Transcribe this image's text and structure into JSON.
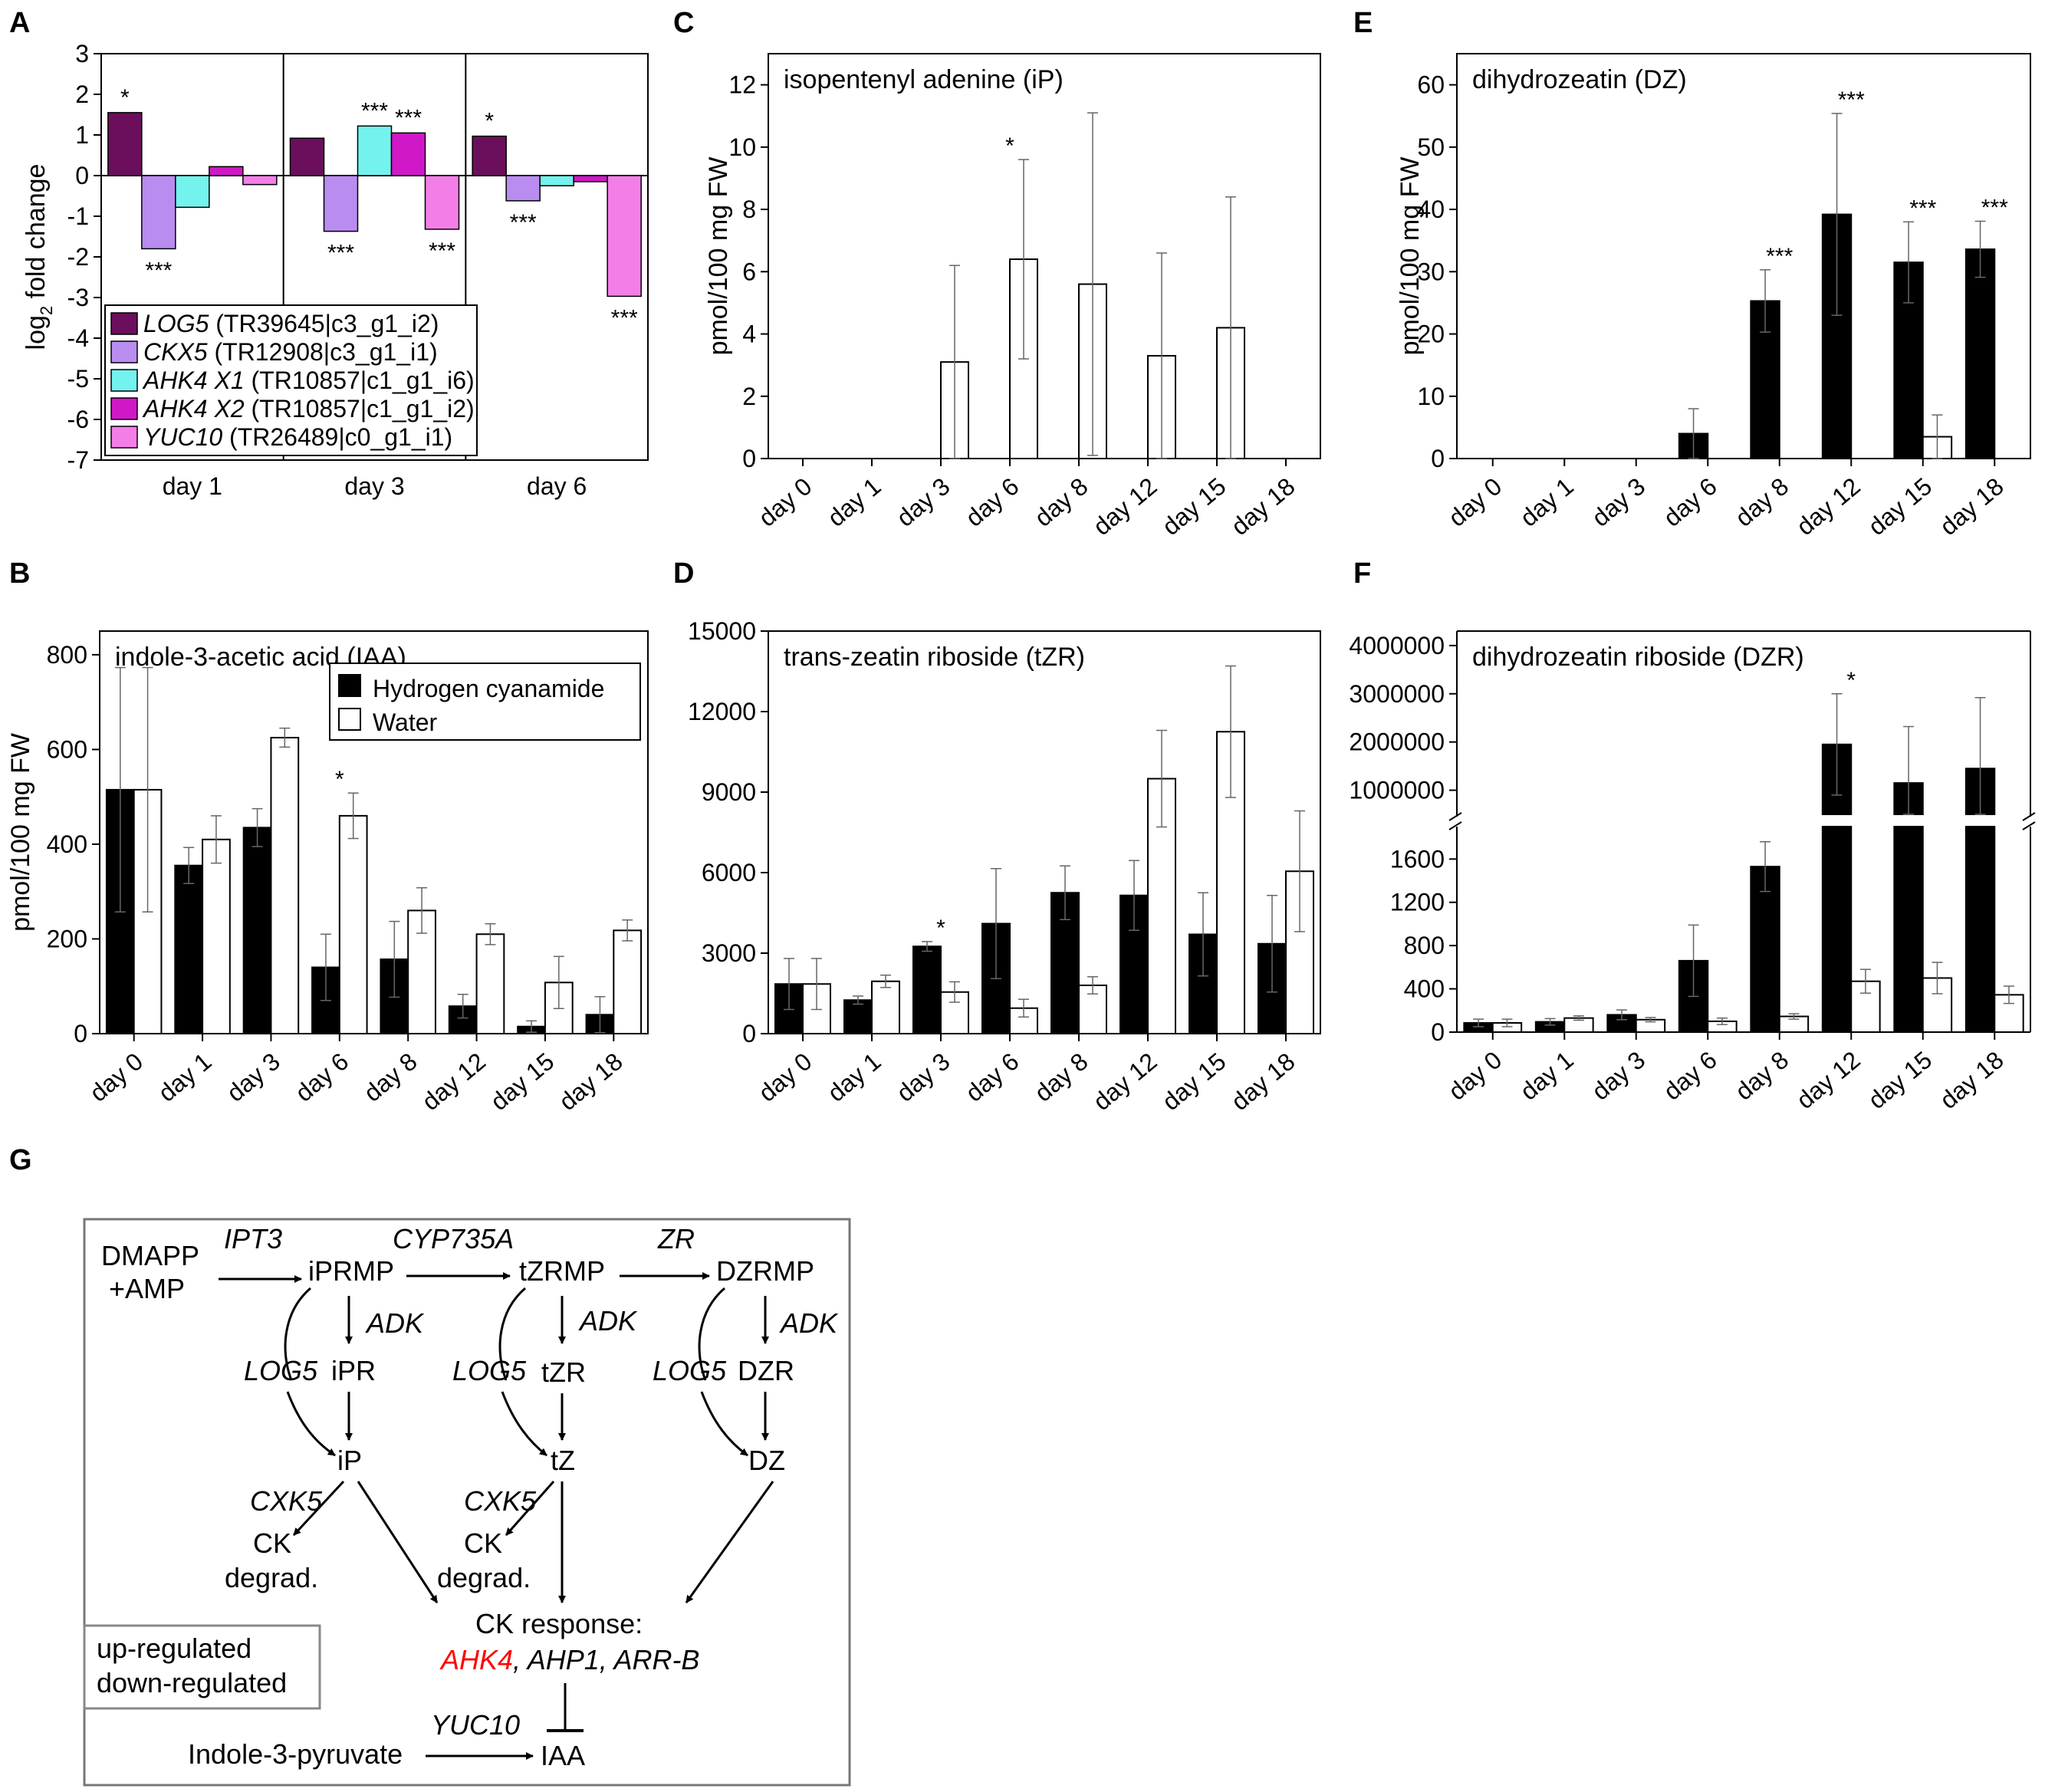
{
  "colors": {
    "hc": "#000000",
    "water": "#ffffff",
    "up": "#ff0000",
    "down": "#2020c0",
    "LOG5": "#6b0f5c",
    "CKX5": "#b98cf0",
    "AHK4_X1": "#73f2ee",
    "AHK4_X2": "#d018c8",
    "YUC10": "#f47ee8"
  },
  "legend_bc": {
    "hc": "Hydrogen cyanamide",
    "water": "Water"
  },
  "chart_data": [
    {
      "panel": "A",
      "type": "bar",
      "ylabel_main": "log",
      "ylabel_sub": "2",
      "ylabel_rest": " fold change",
      "ylim": [
        -7,
        3
      ],
      "yticks": [
        "3",
        "2",
        "1",
        "0",
        "-1",
        "-2",
        "-3",
        "-4",
        "-5",
        "-6",
        "-7"
      ],
      "groups": [
        "day 1",
        "day 3",
        "day 6"
      ],
      "series": [
        {
          "gene": "LOG5",
          "id": " (TR39645|c3_g1_i2)",
          "color_key": "LOG5",
          "values": [
            1.55,
            0.92,
            0.97
          ],
          "stars": [
            "*",
            "",
            "*"
          ]
        },
        {
          "gene": "CKX5",
          "id": " (TR12908|c3_g1_i1)",
          "color_key": "CKX5",
          "values": [
            -1.8,
            -1.37,
            -0.62
          ],
          "stars": [
            "***",
            "***",
            "***"
          ]
        },
        {
          "gene": "AHK4 X1",
          "id": " (TR10857|c1_g1_i6)",
          "color_key": "AHK4_X1",
          "values": [
            -0.78,
            1.22,
            -0.25
          ],
          "stars": [
            "",
            "***",
            ""
          ]
        },
        {
          "gene": "AHK4 X2",
          "id": " (TR10857|c1_g1_i2)",
          "color_key": "AHK4_X2",
          "values": [
            0.22,
            1.05,
            -0.15
          ],
          "stars": [
            "",
            "***",
            ""
          ]
        },
        {
          "gene": "YUC10",
          "id": " (TR26489|c0_g1_i1)",
          "color_key": "YUC10",
          "values": [
            -0.22,
            -1.32,
            -2.97
          ],
          "stars": [
            "",
            "***",
            "***"
          ]
        }
      ]
    },
    {
      "panel": "B",
      "type": "bar",
      "title": "indole-3-acetic acid (IAA)",
      "ylabel": "pmol/100 mg FW",
      "ylim": [
        0,
        850
      ],
      "yticks": [
        0,
        200,
        400,
        600,
        800
      ],
      "categories": [
        "day 0",
        "day 1",
        "day 3",
        "day 6",
        "day 8",
        "day 12",
        "day 15",
        "day 18"
      ],
      "series": [
        {
          "name": "Hydrogen cyanamide",
          "values": [
            515,
            355,
            435,
            140,
            157,
            58,
            15,
            40
          ],
          "errors": [
            258,
            38,
            40,
            70,
            80,
            25,
            12,
            38
          ]
        },
        {
          "name": "Water",
          "values": [
            515,
            410,
            625,
            460,
            260,
            210,
            108,
            218
          ],
          "errors": [
            258,
            50,
            20,
            48,
            48,
            22,
            55,
            22
          ]
        }
      ],
      "stars": [
        "",
        "",
        "",
        "*",
        "",
        "",
        "",
        ""
      ]
    },
    {
      "panel": "C",
      "type": "bar",
      "title": "isopentenyl adenine (iP)",
      "ylabel": "pmol/100 mg FW",
      "ylim": [
        0,
        13
      ],
      "yticks": [
        0,
        2,
        4,
        6,
        8,
        10,
        12
      ],
      "categories": [
        "day 0",
        "day 1",
        "day 3",
        "day 6",
        "day 8",
        "day 12",
        "day 15",
        "day 18"
      ],
      "series": [
        {
          "name": "Hydrogen cyanamide",
          "values": [
            0,
            0,
            0,
            0,
            0,
            0,
            0,
            0
          ],
          "errors": [
            0,
            0,
            0,
            0,
            0,
            0,
            0,
            0
          ]
        },
        {
          "name": "Water",
          "values": [
            0,
            0,
            3.1,
            6.4,
            5.6,
            3.3,
            4.2,
            0
          ],
          "errors": [
            0,
            0,
            3.1,
            3.2,
            5.5,
            3.3,
            4.2,
            0
          ]
        }
      ],
      "stars": [
        "",
        "",
        "",
        "*",
        "",
        "",
        "",
        ""
      ]
    },
    {
      "panel": "D",
      "type": "bar",
      "title": "trans-zeatin riboside (tZR)",
      "ylim": [
        0,
        15000
      ],
      "yticks": [
        0,
        3000,
        6000,
        9000,
        12000,
        15000
      ],
      "categories": [
        "day 0",
        "day 1",
        "day 3",
        "day 6",
        "day 8",
        "day 12",
        "day 15",
        "day 18"
      ],
      "series": [
        {
          "name": "Hydrogen cyanamide",
          "values": [
            1850,
            1250,
            3250,
            4100,
            5250,
            5150,
            3700,
            3350
          ],
          "errors": [
            950,
            150,
            180,
            2050,
            1000,
            1300,
            1550,
            1800
          ]
        },
        {
          "name": "Water",
          "values": [
            1850,
            1950,
            1550,
            950,
            1800,
            9500,
            11250,
            6050
          ],
          "errors": [
            950,
            230,
            380,
            330,
            320,
            1800,
            2450,
            2250
          ]
        }
      ],
      "stars": [
        "",
        "",
        "*",
        "",
        "",
        "",
        "",
        ""
      ]
    },
    {
      "panel": "E",
      "type": "bar",
      "title": "dihydrozeatin (DZ)",
      "ylabel": "pmol/100 mg FW",
      "ylim": [
        0,
        65
      ],
      "yticks": [
        0,
        10,
        20,
        30,
        40,
        50,
        60
      ],
      "categories": [
        "day 0",
        "day 1",
        "day 3",
        "day 6",
        "day 8",
        "day 12",
        "day 15",
        "day 18"
      ],
      "series": [
        {
          "name": "Hydrogen cyanamide",
          "values": [
            0,
            0,
            0,
            4.0,
            25.3,
            39.2,
            31.5,
            33.6
          ],
          "errors": [
            0,
            0,
            0,
            4.0,
            5.0,
            16.2,
            6.5,
            4.5
          ]
        },
        {
          "name": "Water",
          "values": [
            0,
            0,
            0,
            0,
            0,
            0,
            3.5,
            0
          ],
          "errors": [
            0,
            0,
            0,
            0,
            0,
            0,
            3.5,
            0
          ]
        }
      ],
      "stars": [
        "",
        "",
        "",
        "",
        "***",
        "***",
        "***",
        "***"
      ]
    },
    {
      "panel": "F",
      "type": "bar",
      "title": "dihydrozeatin riboside (DZR)",
      "axis_break": [
        1900,
        500000
      ],
      "yticks_lower": [
        0,
        400,
        800,
        1200,
        1600
      ],
      "yticks_upper": [
        1000000,
        2000000,
        3000000,
        4000000
      ],
      "categories": [
        "day 0",
        "day 1",
        "day 3",
        "day 6",
        "day 8",
        "day 12",
        "day 15",
        "day 18"
      ],
      "series": [
        {
          "name": "Hydrogen cyanamide",
          "values": [
            85,
            95,
            160,
            660,
            1530,
            1950000,
            1150000,
            1450000
          ],
          "errors": [
            35,
            30,
            45,
            330,
            230,
            1050000,
            1170000,
            1470000
          ]
        },
        {
          "name": "Water",
          "values": [
            85,
            130,
            115,
            100,
            145,
            470,
            500,
            345
          ],
          "errors": [
            35,
            20,
            20,
            30,
            25,
            110,
            145,
            80
          ]
        }
      ],
      "stars": [
        "",
        "",
        "",
        "",
        "",
        "*",
        "",
        ""
      ]
    }
  ],
  "diagram": {
    "dmapp": "DMAPP",
    "amp": "+AMP",
    "ipt3": "IPT3",
    "iprmp": "iPRMP",
    "cyp": "CYP735A",
    "tzrmp": "tZRMP",
    "zr": "ZR",
    "dzrmp": "DZRMP",
    "adk": "ADK",
    "log5": "LOG5",
    "ipr": "iPR",
    "tzr": "tZR",
    "dzr": "DZR",
    "ip": "iP",
    "tz": "tZ",
    "dz": "DZ",
    "cxk5": "CXK5",
    "ck": "CK",
    "degrad": "degrad.",
    "ck_response": "CK response:",
    "ahk4": "AHK4",
    "ahp1": ", AHP1, ",
    "arrb": "ARR-B",
    "yuc10": "YUC10",
    "indole": "Indole-3-pyruvate",
    "iaa": "IAA",
    "up_label": "up-regulated",
    "down_label": "down-regulated"
  }
}
